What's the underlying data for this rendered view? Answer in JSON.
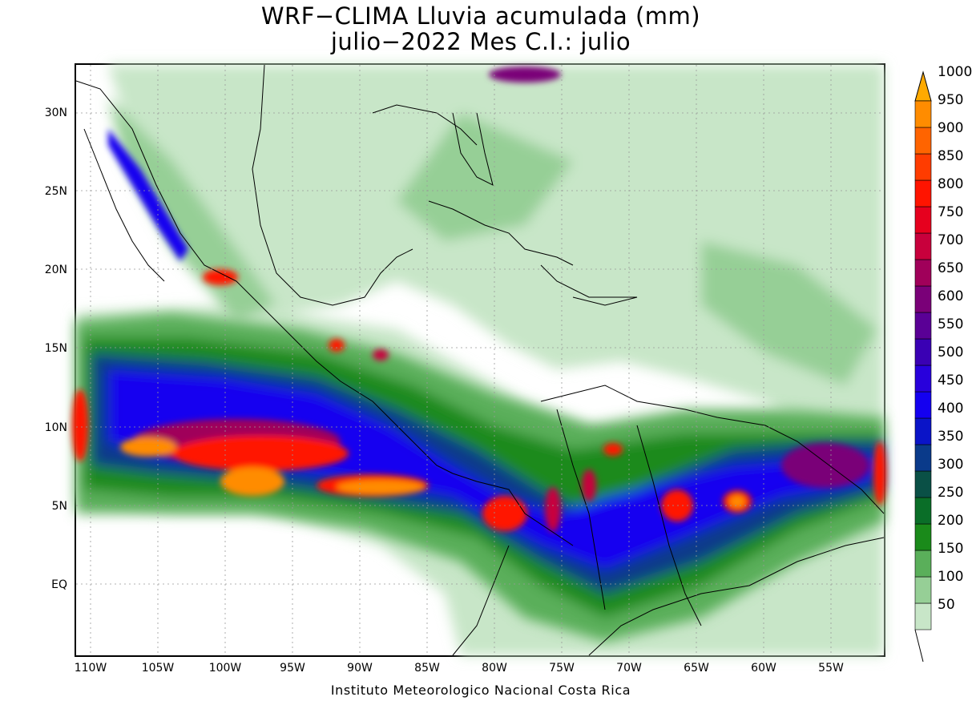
{
  "title": {
    "line1": "WRF−CLIMA Lluvia acumulada (mm)",
    "line2": "julio−2022 Mes C.I.: julio"
  },
  "credit": "Instituto Meteorologico Nacional Costa Rica",
  "map": {
    "lon_range": [
      -111,
      -51
    ],
    "lat_range": [
      -5,
      33
    ],
    "lat_labels": [
      {
        "lat": 30,
        "text": "30N"
      },
      {
        "lat": 25,
        "text": "25N"
      },
      {
        "lat": 20,
        "text": "20N"
      },
      {
        "lat": 15,
        "text": "15N"
      },
      {
        "lat": 10,
        "text": "10N"
      },
      {
        "lat": 5,
        "text": "5N"
      },
      {
        "lat": 0,
        "text": "EQ"
      }
    ],
    "lon_labels": [
      {
        "lon": -110,
        "text": "110W"
      },
      {
        "lon": -105,
        "text": "105W"
      },
      {
        "lon": -100,
        "text": "100W"
      },
      {
        "lon": -95,
        "text": "95W"
      },
      {
        "lon": -90,
        "text": "90W"
      },
      {
        "lon": -85,
        "text": "85W"
      },
      {
        "lon": -80,
        "text": "80W"
      },
      {
        "lon": -75,
        "text": "75W"
      },
      {
        "lon": -70,
        "text": "70W"
      },
      {
        "lon": -65,
        "text": "65W"
      },
      {
        "lon": -60,
        "text": "60W"
      },
      {
        "lon": -55,
        "text": "55W"
      }
    ]
  },
  "colorbar": {
    "units": "mm",
    "levels": [
      {
        "label": "50",
        "color": "#c8e6c8"
      },
      {
        "label": "100",
        "color": "#96cf96"
      },
      {
        "label": "150",
        "color": "#5aaf5a"
      },
      {
        "label": "200",
        "color": "#1a8a1a"
      },
      {
        "label": "250",
        "color": "#0a6e28"
      },
      {
        "label": "300",
        "color": "#0a5046"
      },
      {
        "label": "350",
        "color": "#0a3a8a"
      },
      {
        "label": "400",
        "color": "#0a14c8"
      },
      {
        "label": "450",
        "color": "#1400f0"
      },
      {
        "label": "500",
        "color": "#2800dc"
      },
      {
        "label": "550",
        "color": "#3a00b4"
      },
      {
        "label": "600",
        "color": "#5a0096"
      },
      {
        "label": "650",
        "color": "#7a0078"
      },
      {
        "label": "700",
        "color": "#a0005a"
      },
      {
        "label": "750",
        "color": "#c8003c"
      },
      {
        "label": "800",
        "color": "#e6001e"
      },
      {
        "label": "850",
        "color": "#ff1400"
      },
      {
        "label": "900",
        "color": "#ff3c00"
      },
      {
        "label": "950",
        "color": "#ff6400"
      },
      {
        "label": "1000",
        "color": "#ff8c00"
      }
    ],
    "over_color": "#ffaa00"
  }
}
